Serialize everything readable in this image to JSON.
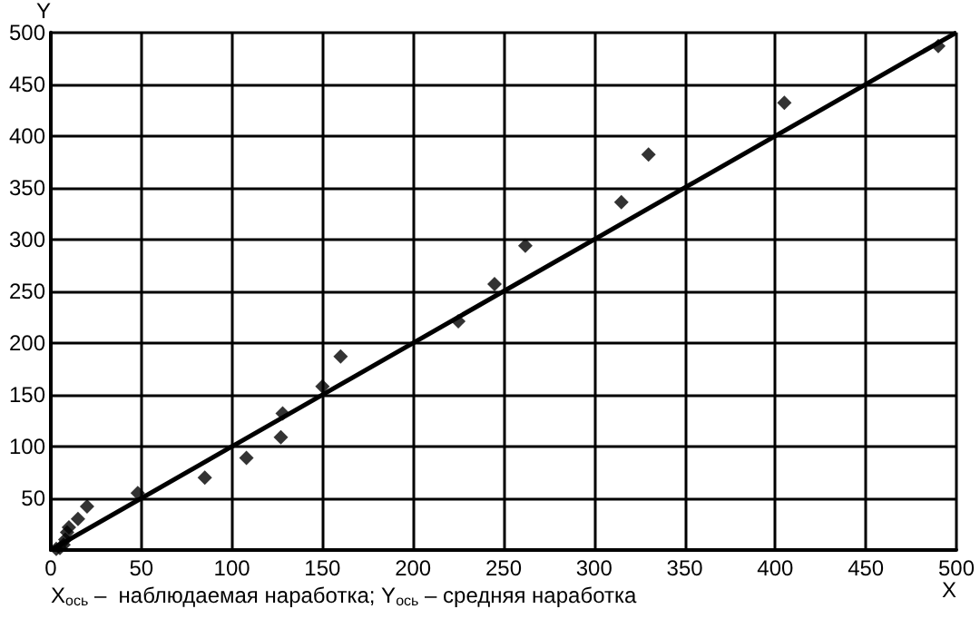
{
  "chart_data": {
    "type": "scatter",
    "xlabel": "X",
    "ylabel": "Y",
    "annotations": [
      "X$_{ось}$ –  наблюдаемая наработка; Y$_{ось}$ – средняя наработка"
    ],
    "x": [
      3,
      5,
      7,
      8,
      9,
      10,
      15,
      20,
      48,
      85,
      108,
      127,
      128,
      150,
      160,
      225,
      245,
      262,
      315,
      330,
      405,
      490
    ],
    "series": [
      {
        "color": "#000000",
        "values": [
          1,
          2,
          5,
          10,
          17,
          22,
          30,
          42,
          55,
          70,
          89,
          109,
          132,
          158,
          187,
          221,
          257,
          294,
          336,
          382,
          432,
          487
        ]
      },
      {
        "type": "line",
        "color": "#000000",
        "x": [
          0,
          500
        ],
        "values": [
          0,
          500
        ],
        "marker": "none"
      }
    ],
    "xlim": [
      0,
      500
    ],
    "ylim": [
      0,
      500
    ],
    "xticks": [
      0,
      50,
      100,
      150,
      200,
      250,
      300,
      350,
      400,
      450,
      500
    ],
    "yticks": [
      {
        "value": 0,
        "label": null
      },
      50,
      100,
      150,
      200,
      250,
      300,
      350,
      400,
      450,
      500
    ],
    "grid": true,
    "marker": "diamond",
    "line_style": "solid"
  }
}
